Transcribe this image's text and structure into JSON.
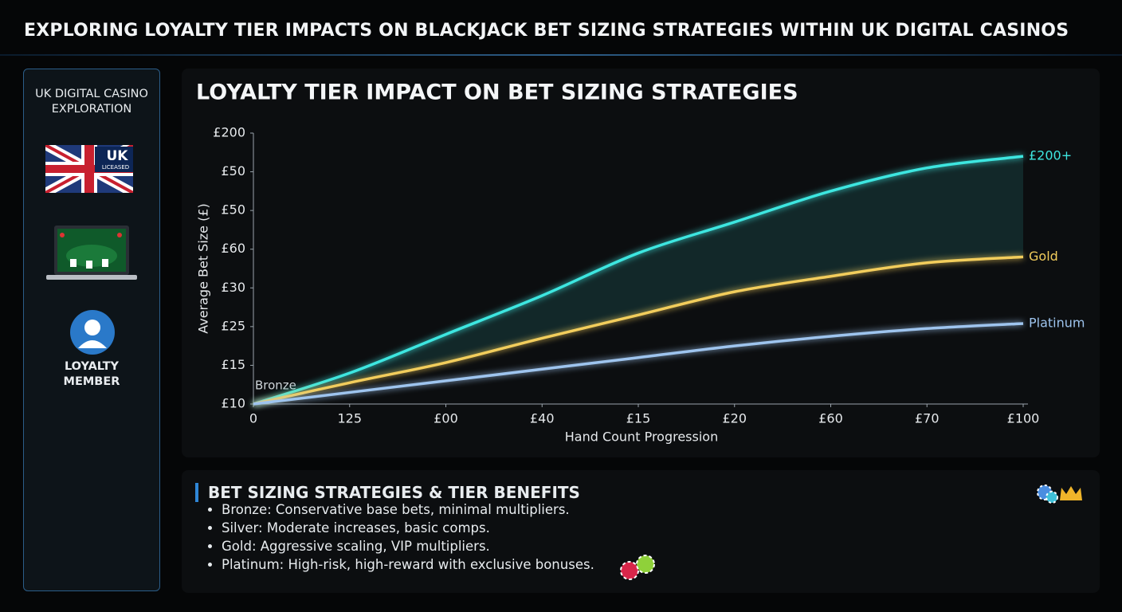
{
  "header": {
    "title": "EXPLORING LOYALTY TIER IMPACTS ON BLACKJACK BET SIZING STRATEGIES WITHIN UK DIGITAL CASINOS"
  },
  "sidebar": {
    "title": "UK DIGITAL CASINO EXPLORATION",
    "badge": {
      "main": "UK",
      "sub": "LICEASED"
    },
    "member": "LOYALTY MEMBER"
  },
  "chart_data": {
    "type": "line",
    "title": "LOYALTY TIER IMPACT ON BET SIZING STRATEGIES",
    "y_label": "Average Bet Size (£)",
    "x_label": "Hand Count Progression",
    "annotation": "Bronze",
    "x": [
      0,
      1,
      2,
      3,
      4,
      5,
      6,
      7,
      8
    ],
    "series": [
      {
        "name": "£200+",
        "color": "#3ee6e0",
        "values": [
          0,
          0.8,
          1.8,
          2.8,
          3.9,
          4.7,
          5.5,
          6.1,
          6.4
        ]
      },
      {
        "name": "Gold",
        "color": "#f2cd5c",
        "values": [
          0,
          0.55,
          1.07,
          1.7,
          2.3,
          2.9,
          3.3,
          3.65,
          3.8
        ]
      },
      {
        "name": "Platinum",
        "color": "#9ec4ee",
        "values": [
          0,
          0.3,
          0.6,
          0.9,
          1.2,
          1.5,
          1.75,
          1.95,
          2.08
        ]
      }
    ],
    "xlim": [
      0,
      8
    ],
    "xticks": [
      0,
      {
        "value": 1,
        "label": "125"
      },
      {
        "value": 2,
        "label": "£00"
      },
      {
        "value": 3,
        "label": "£40"
      },
      {
        "value": 4,
        "label": "£15"
      },
      {
        "value": 5,
        "label": "£20"
      },
      {
        "value": 6,
        "label": "£60"
      },
      {
        "value": 7,
        "label": "£70"
      },
      {
        "value": 8,
        "label": "£100"
      }
    ],
    "ylim": [
      0,
      7
    ],
    "yticks": [
      {
        "value": 0,
        "label": "£10"
      },
      {
        "value": 1,
        "label": "£15"
      },
      {
        "value": 2,
        "label": "£25"
      },
      {
        "value": 3,
        "label": "£30"
      },
      {
        "value": 4,
        "label": "£60"
      },
      {
        "value": 5,
        "label": "£50"
      },
      {
        "value": 6,
        "label": "£50"
      },
      {
        "value": 7,
        "label": "£200"
      }
    ]
  },
  "benefits": {
    "title": "BET SIZING STRATEGIES & TIER BENEFITS",
    "items": [
      "Bronze: Conservative base bets, minimal multipliers.",
      "Silver: Moderate increases, basic comps.",
      "Gold: Aggressive scaling, VIP multipliers.",
      "Platinum: High-risk, high-reward with exclusive bonuses."
    ]
  }
}
